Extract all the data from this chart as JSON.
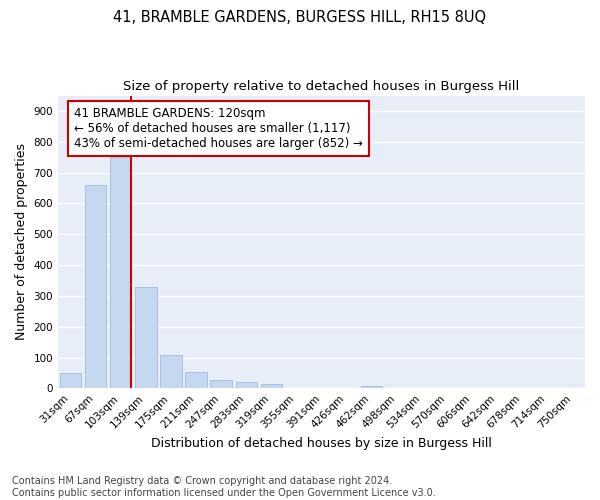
{
  "title1": "41, BRAMBLE GARDENS, BURGESS HILL, RH15 8UQ",
  "title2": "Size of property relative to detached houses in Burgess Hill",
  "xlabel": "Distribution of detached houses by size in Burgess Hill",
  "ylabel": "Number of detached properties",
  "footnote": "Contains HM Land Registry data © Crown copyright and database right 2024.\nContains public sector information licensed under the Open Government Licence v3.0.",
  "bar_labels": [
    "31sqm",
    "67sqm",
    "103sqm",
    "139sqm",
    "175sqm",
    "211sqm",
    "247sqm",
    "283sqm",
    "319sqm",
    "355sqm",
    "391sqm",
    "426sqm",
    "462sqm",
    "498sqm",
    "534sqm",
    "570sqm",
    "606sqm",
    "642sqm",
    "678sqm",
    "714sqm",
    "750sqm"
  ],
  "bar_values": [
    50,
    660,
    750,
    330,
    107,
    52,
    27,
    20,
    15,
    0,
    0,
    0,
    8,
    0,
    0,
    0,
    0,
    0,
    0,
    0,
    0
  ],
  "bar_color": "#c5d8f0",
  "bar_edge_color": "#a0bedd",
  "vline_color": "#cc0000",
  "annotation_text": "41 BRAMBLE GARDENS: 120sqm\n← 56% of detached houses are smaller (1,117)\n43% of semi-detached houses are larger (852) →",
  "annotation_box_color": "#ffffff",
  "annotation_box_edge": "#cc0000",
  "ylim": [
    0,
    950
  ],
  "yticks": [
    0,
    100,
    200,
    300,
    400,
    500,
    600,
    700,
    800,
    900
  ],
  "figure_bg": "#ffffff",
  "plot_bg_color": "#e8eef8",
  "grid_color": "#ffffff",
  "title1_fontsize": 10.5,
  "title2_fontsize": 9.5,
  "axis_label_fontsize": 9,
  "tick_fontsize": 7.5,
  "annotation_fontsize": 8.5,
  "footnote_fontsize": 7
}
